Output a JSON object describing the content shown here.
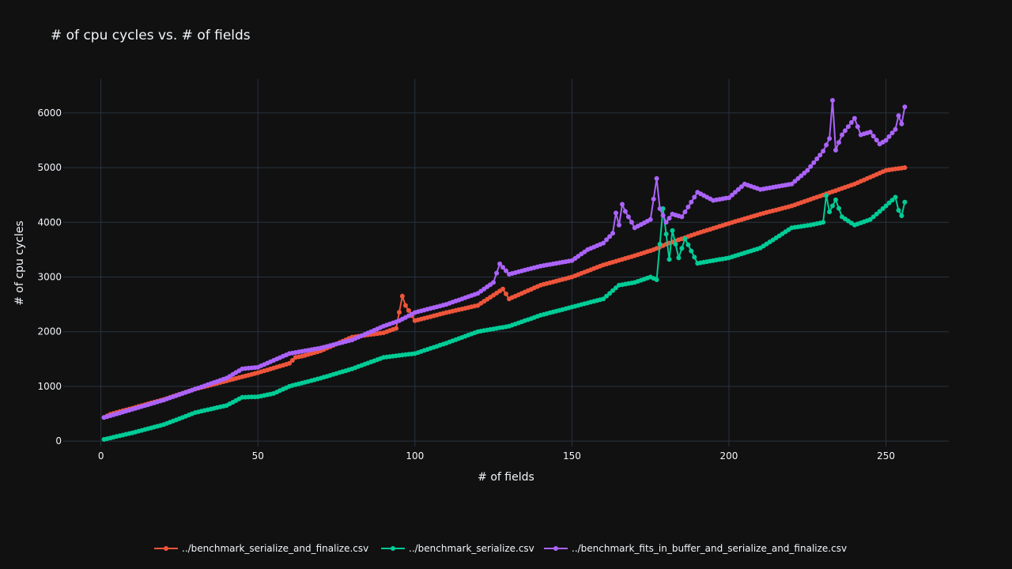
{
  "chart_data": {
    "type": "line",
    "title": "# of cpu cycles vs. # of fields",
    "xlabel": "# of fields",
    "ylabel": "# of cpu cycles",
    "xlim": [
      -12,
      270
    ],
    "ylim": [
      -100,
      6620
    ],
    "xticks": [
      0,
      50,
      100,
      150,
      200,
      250
    ],
    "yticks": [
      0,
      1000,
      2000,
      3000,
      4000,
      5000,
      6000
    ],
    "grid": true,
    "legend_position": "bottom",
    "series": [
      {
        "name": "../benchmark_serialize_and_finalize.csv",
        "color": "#ef553b",
        "x": [
          1,
          3,
          10,
          20,
          30,
          40,
          50,
          60,
          62,
          64,
          70,
          80,
          90,
          94,
          96,
          97,
          100,
          110,
          120,
          128,
          130,
          140,
          150,
          160,
          170,
          176,
          180,
          190,
          200,
          210,
          220,
          230,
          240,
          250,
          256
        ],
        "y": [
          430,
          490,
          600,
          760,
          950,
          1100,
          1250,
          1420,
          1530,
          1550,
          1650,
          1900,
          1980,
          2060,
          2650,
          2480,
          2200,
          2350,
          2480,
          2780,
          2600,
          2850,
          3000,
          3220,
          3390,
          3500,
          3600,
          3800,
          3980,
          4150,
          4300,
          4500,
          4700,
          4950,
          5000
        ]
      },
      {
        "name": "../benchmark_serialize.csv",
        "color": "#00cc96",
        "x": [
          1,
          10,
          20,
          30,
          40,
          45,
          50,
          55,
          60,
          70,
          80,
          90,
          100,
          110,
          120,
          130,
          140,
          150,
          160,
          165,
          170,
          175,
          177,
          178,
          179,
          181,
          182,
          184,
          186,
          190,
          200,
          210,
          220,
          226,
          230,
          231,
          232,
          234,
          236,
          240,
          245,
          250,
          253,
          254,
          255,
          256
        ],
        "y": [
          30,
          150,
          300,
          520,
          650,
          800,
          810,
          870,
          1000,
          1150,
          1320,
          1530,
          1600,
          1790,
          2000,
          2100,
          2300,
          2450,
          2600,
          2850,
          2900,
          3000,
          2950,
          3600,
          4250,
          3320,
          3850,
          3350,
          3700,
          3250,
          3350,
          3530,
          3900,
          3950,
          4000,
          4490,
          4190,
          4410,
          4100,
          3950,
          4050,
          4300,
          4460,
          4220,
          4120,
          4370
        ]
      },
      {
        "name": "../benchmark_fits_in_buffer_and_serialize_and_finalize.csv",
        "color": "#ab63fa",
        "x": [
          1,
          10,
          20,
          30,
          40,
          45,
          50,
          60,
          70,
          80,
          90,
          95,
          100,
          110,
          120,
          125,
          127,
          130,
          140,
          150,
          155,
          160,
          163,
          164,
          165,
          166,
          167,
          170,
          175,
          177,
          178,
          180,
          182,
          185,
          190,
          195,
          200,
          205,
          210,
          220,
          225,
          230,
          232,
          233,
          234,
          236,
          240,
          242,
          245,
          248,
          250,
          253,
          254,
          255,
          256
        ],
        "y": [
          430,
          580,
          750,
          950,
          1150,
          1320,
          1350,
          1600,
          1700,
          1850,
          2100,
          2200,
          2350,
          2500,
          2700,
          2900,
          3240,
          3050,
          3200,
          3300,
          3500,
          3620,
          3800,
          4170,
          3950,
          4330,
          4200,
          3900,
          4050,
          4800,
          4250,
          4000,
          4150,
          4100,
          4550,
          4400,
          4450,
          4700,
          4600,
          4700,
          4950,
          5300,
          5530,
          6230,
          5320,
          5600,
          5900,
          5600,
          5650,
          5430,
          5500,
          5700,
          5950,
          5800,
          6110
        ]
      }
    ]
  }
}
